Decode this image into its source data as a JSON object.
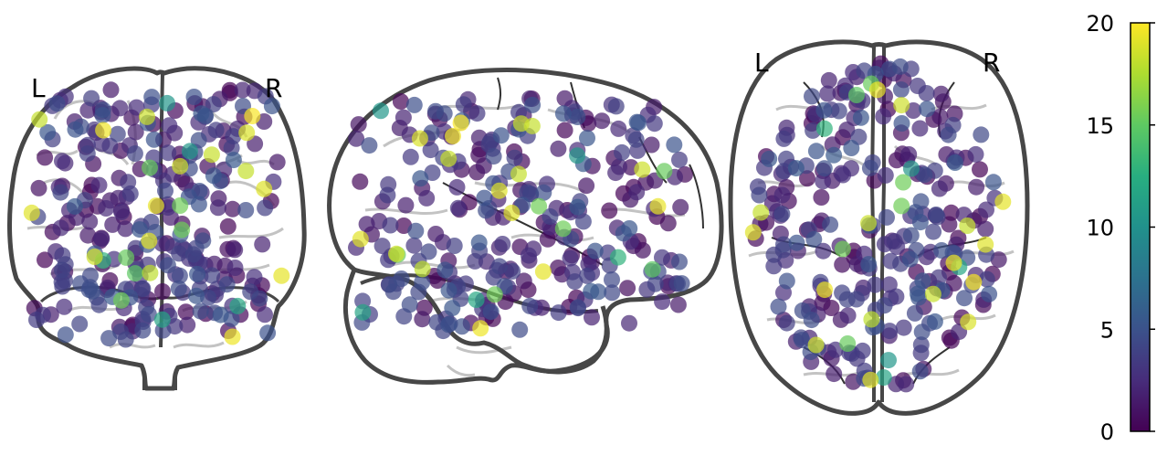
{
  "chart_data": {
    "type": "scatter",
    "title": "",
    "views": [
      {
        "name": "coronal",
        "left_label": "L",
        "right_label": "R"
      },
      {
        "name": "sagittal"
      },
      {
        "name": "axial",
        "left_label": "L",
        "right_label": "R"
      }
    ],
    "colorbar": {
      "colormap": "viridis",
      "ylim": [
        0,
        20
      ],
      "ticks": [
        0,
        5,
        10,
        15,
        20
      ],
      "tick_labels": [
        "0",
        "5",
        "10",
        "15",
        "20"
      ]
    },
    "colors": {
      "outline": "#474747",
      "sulci": "#bdbdbd",
      "viridis_stops": [
        "#440154",
        "#472d7b",
        "#3b528b",
        "#2c728e",
        "#21918c",
        "#28ae80",
        "#5ec962",
        "#addc30",
        "#fde725"
      ]
    },
    "node_count": 300,
    "value_distribution": "mostly 0-5 (dark purple/blue), a few 10-15 (teal/green) and a few 18-20 (yellow)"
  }
}
